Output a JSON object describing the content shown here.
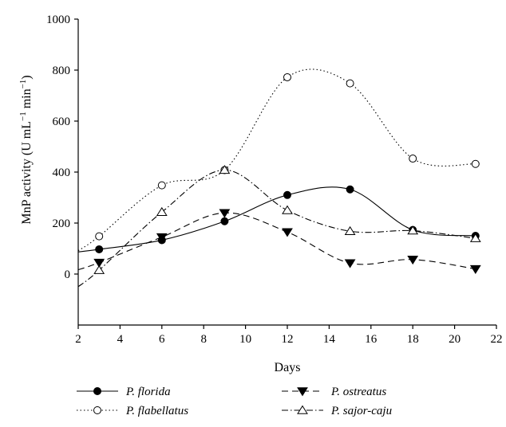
{
  "chart_data": {
    "type": "line",
    "xlabel": "Days",
    "ylabel": "MnP activity (U mL",
    "ylabel_sup1": "−1",
    "ylabel_mid": " min",
    "ylabel_sup2": "−1",
    "ylabel_end": ")",
    "xlim": [
      2,
      22
    ],
    "ylim": [
      -200,
      1000
    ],
    "xticks": [
      2,
      4,
      6,
      8,
      10,
      12,
      14,
      16,
      18,
      20,
      22
    ],
    "yticks": [
      0,
      200,
      400,
      600,
      800,
      1000
    ],
    "xtick_labels": [
      "2",
      "4",
      "6",
      "8",
      "10",
      "12",
      "14",
      "16",
      "18",
      "20",
      "22"
    ],
    "ytick_labels": [
      "0",
      "200",
      "400",
      "600",
      "800",
      "1000"
    ],
    "legend_position": "bottom",
    "x": [
      3,
      6,
      9,
      12,
      15,
      18,
      21
    ],
    "series": [
      {
        "name": "P. florida",
        "values": [
          97,
          133,
          207,
          310,
          332,
          173,
          150
        ],
        "marker": "filled-circle",
        "line": "solid"
      },
      {
        "name": "P. ostreatus",
        "values": [
          45,
          145,
          240,
          165,
          43,
          57,
          20
        ],
        "marker": "filled-triangle-down",
        "line": "dashed"
      },
      {
        "name": "P. flabellatus",
        "values": [
          148,
          348,
          408,
          772,
          748,
          453,
          432
        ],
        "marker": "open-circle",
        "line": "dotted"
      },
      {
        "name": "P. sajor-caju",
        "values": [
          15,
          243,
          408,
          250,
          168,
          170,
          140
        ],
        "marker": "open-triangle-up",
        "line": "dashdot"
      }
    ]
  }
}
